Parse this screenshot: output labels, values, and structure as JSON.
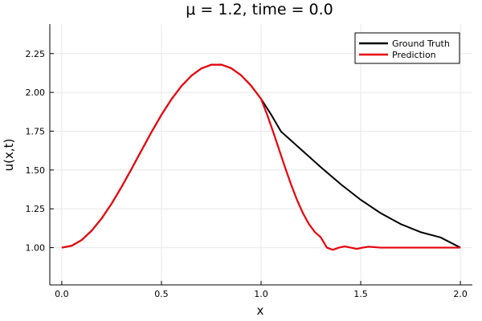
{
  "chart_data": {
    "type": "line",
    "title": "μ = 1.2, time = 0.0",
    "xlabel": "x",
    "ylabel": "u(x,t)",
    "xlim": [
      -0.06,
      2.06
    ],
    "ylim": [
      0.76,
      2.44
    ],
    "xticks": [
      0.0,
      0.5,
      1.0,
      1.5,
      2.0
    ],
    "xtick_labels": [
      "0.0",
      "0.5",
      "1.0",
      "1.5",
      "2.0"
    ],
    "yticks": [
      1.0,
      1.25,
      1.5,
      1.75,
      2.0,
      2.25
    ],
    "ytick_labels": [
      "1.00",
      "1.25",
      "1.50",
      "1.75",
      "2.00",
      "2.25"
    ],
    "grid": true,
    "legend_position": "top-right",
    "series": [
      {
        "name": "Ground Truth",
        "color": "#000000",
        "x": [
          0.0,
          0.05,
          0.1,
          0.15,
          0.2,
          0.25,
          0.3,
          0.35,
          0.4,
          0.45,
          0.5,
          0.55,
          0.6,
          0.65,
          0.7,
          0.75,
          0.8,
          0.85,
          0.9,
          0.95,
          1.0,
          1.05,
          1.1,
          1.2,
          1.3,
          1.4,
          1.5,
          1.6,
          1.7,
          1.8,
          1.9,
          2.0
        ],
        "y": [
          1.0,
          1.012,
          1.049,
          1.109,
          1.188,
          1.283,
          1.391,
          1.507,
          1.626,
          1.744,
          1.855,
          1.955,
          2.04,
          2.107,
          2.154,
          2.178,
          2.179,
          2.156,
          2.11,
          2.043,
          1.958,
          1.858,
          1.748,
          1.633,
          1.518,
          1.408,
          1.308,
          1.222,
          1.152,
          1.1,
          1.066,
          1.0
        ]
      },
      {
        "name": "Prediction",
        "color": "#e8000b",
        "x": [
          0.0,
          0.05,
          0.1,
          0.15,
          0.2,
          0.25,
          0.3,
          0.35,
          0.4,
          0.45,
          0.5,
          0.55,
          0.6,
          0.65,
          0.7,
          0.75,
          0.8,
          0.85,
          0.9,
          0.95,
          1.0,
          1.03,
          1.06,
          1.09,
          1.12,
          1.15,
          1.18,
          1.21,
          1.24,
          1.27,
          1.3,
          1.33,
          1.36,
          1.39,
          1.42,
          1.45,
          1.48,
          1.51,
          1.54,
          1.6,
          1.7,
          1.8,
          1.9,
          2.0
        ],
        "y": [
          1.0,
          1.012,
          1.049,
          1.109,
          1.188,
          1.283,
          1.391,
          1.507,
          1.626,
          1.744,
          1.855,
          1.955,
          2.04,
          2.107,
          2.154,
          2.178,
          2.179,
          2.156,
          2.11,
          2.043,
          1.958,
          1.858,
          1.748,
          1.633,
          1.518,
          1.408,
          1.308,
          1.222,
          1.152,
          1.1,
          1.066,
          1.0,
          0.986,
          1.0,
          1.008,
          1.0,
          0.992,
          1.0,
          1.006,
          1.0,
          1.0,
          1.0,
          1.0,
          1.0
        ]
      }
    ]
  }
}
